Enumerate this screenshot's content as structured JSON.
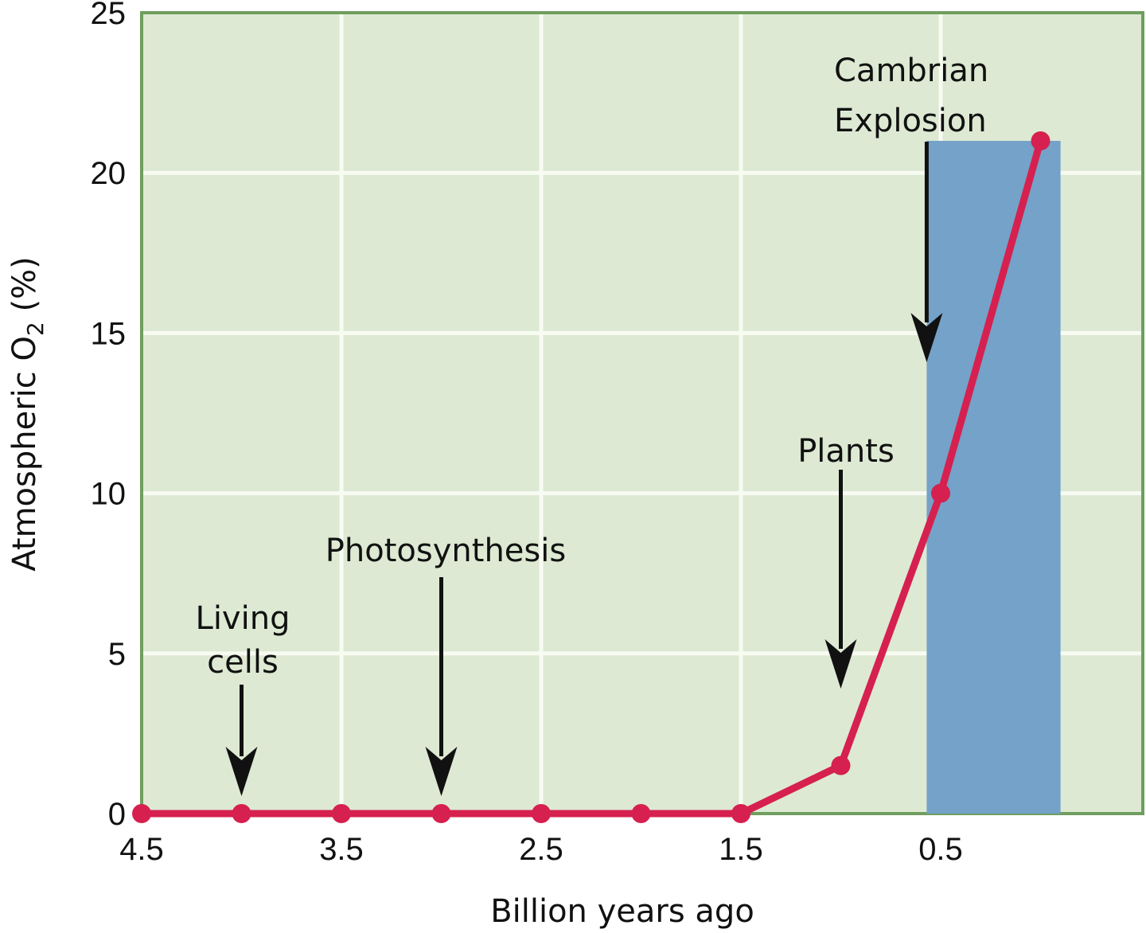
{
  "chart_data": {
    "type": "line",
    "title": "",
    "xlabel": "Billion years ago",
    "ylabel": "Atmospheric O2 (%)",
    "ylabel_parts": {
      "prefix": "Atmospheric O",
      "subscript": "2",
      "suffix": " (%)"
    },
    "xlim": [
      4.5,
      -0.5
    ],
    "ylim": [
      0,
      25
    ],
    "grid": true,
    "x_ticks": [
      "4.5",
      "3.5",
      "2.5",
      "1.5",
      "0.5"
    ],
    "y_ticks": [
      "0",
      "5",
      "10",
      "15",
      "20",
      "25"
    ],
    "series": [
      {
        "name": "Atmospheric O2",
        "x": [
          4.5,
          4.0,
          3.5,
          3.0,
          2.5,
          2.0,
          1.5,
          1.0,
          0.5,
          0.0
        ],
        "values": [
          0,
          0,
          0,
          0,
          0,
          0,
          0,
          1.5,
          10,
          21
        ],
        "color": "#d6204f"
      }
    ],
    "shaded_region": {
      "label": "Cambrian Explosion",
      "x_start": 0.57,
      "x_end": -0.1,
      "y_top": 21,
      "color": "#74a2c8"
    },
    "annotations": [
      {
        "line1": "Living",
        "line2": "cells",
        "x": 4.0
      },
      {
        "line1": "Photosynthesis",
        "line2": "",
        "x": 3.0
      },
      {
        "line1": "Plants",
        "line2": "",
        "x": 1.0
      },
      {
        "line1": "Cambrian",
        "line2": "Explosion",
        "x": 0.57
      }
    ],
    "colors": {
      "plot_bg": "#dde9d3",
      "grid": "#f7fbf2",
      "border": "#6f9e5e",
      "line": "#d6204f",
      "shade": "#74a2c8"
    }
  }
}
